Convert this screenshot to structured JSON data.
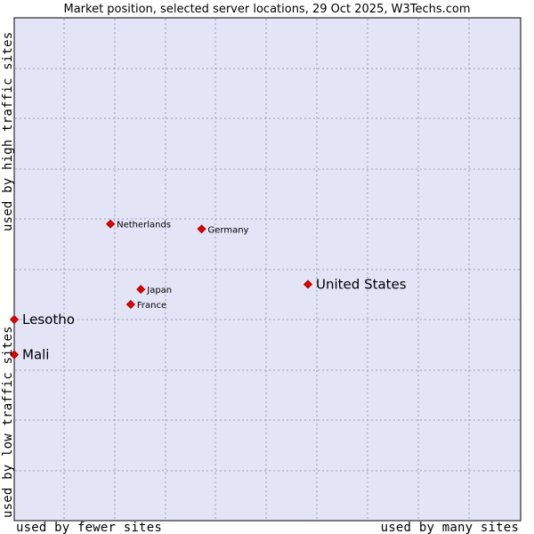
{
  "chart_data": {
    "type": "scatter",
    "title": "Market position, selected server locations, 29 Oct 2025, W3Techs.com",
    "xlabel_low": "used by fewer sites",
    "xlabel_high": "used by many sites",
    "ylabel_low": "used by low traffic sites",
    "ylabel_high": "used by high traffic sites",
    "xlim": [
      0,
      100
    ],
    "ylim": [
      0,
      100
    ],
    "grid": true,
    "colors": {
      "plot_bg": "#e3e5f7",
      "grid": "#9a9ab0",
      "marker": "#e00000",
      "marker_stroke": "#a00000"
    },
    "points": [
      {
        "name": "United States",
        "x": 58,
        "y": 47,
        "emphasis": "large"
      },
      {
        "name": "Netherlands",
        "x": 19,
        "y": 59,
        "emphasis": "small"
      },
      {
        "name": "Germany",
        "x": 37,
        "y": 58,
        "emphasis": "small"
      },
      {
        "name": "Japan",
        "x": 25,
        "y": 46,
        "emphasis": "small"
      },
      {
        "name": "France",
        "x": 23,
        "y": 43,
        "emphasis": "small"
      },
      {
        "name": "Lesotho",
        "x": 0,
        "y": 40,
        "emphasis": "large"
      },
      {
        "name": "Mali",
        "x": 0,
        "y": 33,
        "emphasis": "large"
      }
    ]
  }
}
